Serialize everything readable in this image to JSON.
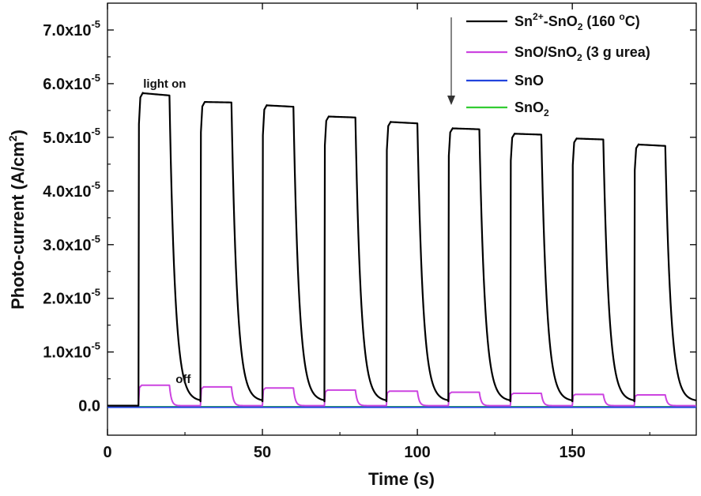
{
  "chart_data": {
    "type": "line",
    "xlabel": "Time (s)",
    "ylabel": {
      "main": "Photo-current (A/cm",
      "sup": "2",
      "close": ")"
    },
    "xlim": [
      0,
      190
    ],
    "ylim": [
      -0.55,
      7.5
    ],
    "y_exponent": "-5",
    "x_ticks": [
      0,
      50,
      100,
      150
    ],
    "y_ticks": [
      0.0,
      1.0,
      2.0,
      3.0,
      4.0,
      5.0,
      6.0,
      7.0
    ],
    "y_tick_labels": [
      "0.0",
      "1.0x10",
      "2.0x10",
      "3.0x10",
      "4.0x10",
      "5.0x10",
      "6.0x10",
      "7.0x10"
    ],
    "grid": false,
    "legend_position": "top-right",
    "light_on_times": [
      10,
      30,
      50,
      70,
      90,
      110,
      130,
      150,
      170
    ],
    "light_off_times": [
      20,
      40,
      60,
      80,
      100,
      120,
      140,
      160,
      180
    ],
    "series": [
      {
        "name": "Sn2+-SnO2 (160 °C)",
        "legend": {
          "a": "Sn",
          "a_sup": "2+",
          "b": "-SnO",
          "b_sub": "2",
          "c": " (160 ",
          "c_sup": "o",
          "d": "C)"
        },
        "color": "#000000",
        "plateau_start": [
          5.83,
          5.66,
          5.6,
          5.39,
          5.29,
          5.17,
          5.07,
          4.98,
          4.87
        ],
        "plateau_end": [
          5.78,
          5.65,
          5.57,
          5.37,
          5.26,
          5.15,
          5.05,
          4.96,
          4.84
        ],
        "dark_baseline": [
          0.0,
          0.08,
          0.08,
          0.08,
          0.08,
          0.08,
          0.08,
          0.08,
          0.08
        ],
        "final_value": 0.08
      },
      {
        "name": "SnO/SnO2 (3 g urea)",
        "legend": {
          "a": "SnO/SnO",
          "a_sub": "2",
          "b": " (3 g urea)"
        },
        "color": "#cc44e0",
        "plateau_start": [
          0.38,
          0.35,
          0.33,
          0.29,
          0.27,
          0.25,
          0.23,
          0.21,
          0.2
        ],
        "plateau_end": [
          0.38,
          0.35,
          0.33,
          0.29,
          0.27,
          0.25,
          0.23,
          0.21,
          0.2
        ],
        "dark_baseline": [
          0.0,
          0.0,
          0.0,
          0.0,
          0.0,
          0.0,
          0.0,
          0.0,
          0.0
        ],
        "final_value": 0.0
      },
      {
        "name": "SnO",
        "legend": {
          "a": "SnO"
        },
        "color": "#2244dd",
        "constant": -0.03
      },
      {
        "name": "SnO2",
        "legend": {
          "a": "SnO",
          "a_sub": "2"
        },
        "color": "#33cc33",
        "constant": -0.02
      }
    ],
    "annotations": [
      {
        "text": "light on",
        "x": 9.5,
        "y": 6.0
      },
      {
        "text": "off",
        "x": 22,
        "y": 0.42
      }
    ]
  }
}
